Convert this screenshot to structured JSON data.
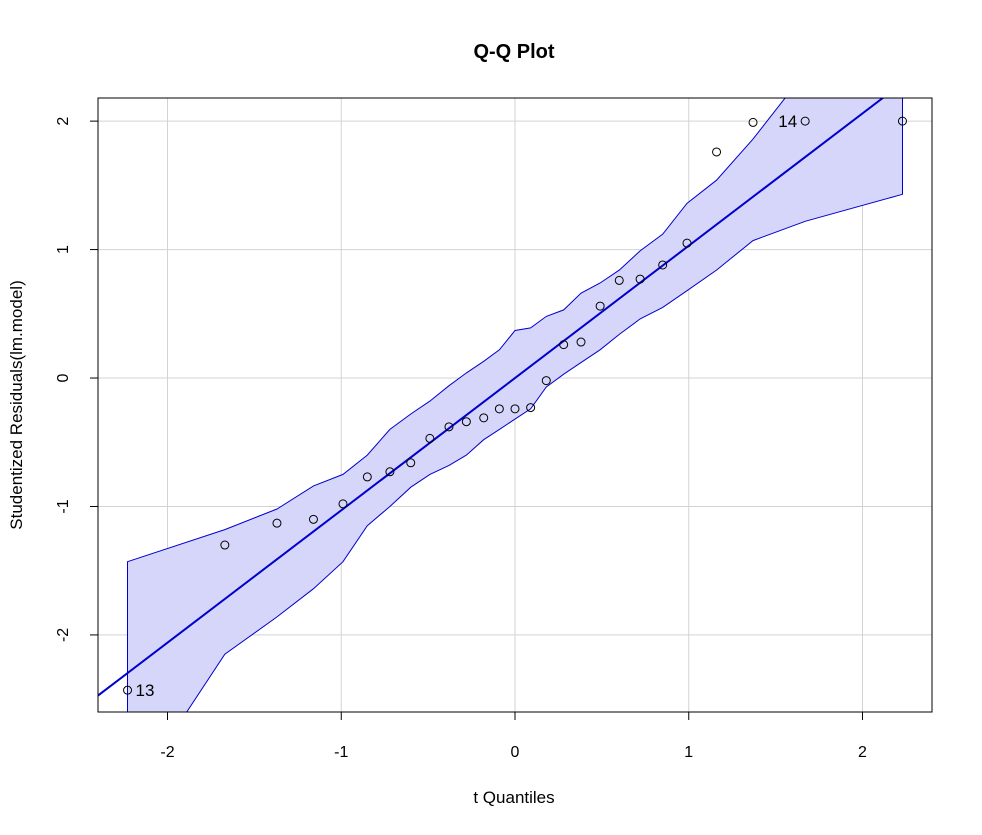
{
  "chart_data": {
    "type": "scatter",
    "title": "Q-Q Plot",
    "xlabel": "t Quantiles",
    "ylabel": "Studentized Residuals(lm.model)",
    "xlim": [
      -2.4,
      2.4
    ],
    "ylim": [
      -2.6,
      2.18
    ],
    "grid": true,
    "x_ticks": [
      -2,
      -1,
      0,
      1,
      2
    ],
    "y_ticks": [
      -2,
      -1,
      0,
      1,
      2
    ],
    "x_tick_labels": [
      "-2",
      "-1",
      "0",
      "1",
      "2"
    ],
    "y_tick_labels": [
      "-2",
      "-1",
      "0",
      "1",
      "2"
    ],
    "points": [
      {
        "x": -2.23,
        "y": -2.43,
        "label": "13"
      },
      {
        "x": -1.67,
        "y": -1.3
      },
      {
        "x": -1.37,
        "y": -1.13
      },
      {
        "x": -1.16,
        "y": -1.1
      },
      {
        "x": -0.99,
        "y": -0.98
      },
      {
        "x": -0.85,
        "y": -0.77
      },
      {
        "x": -0.72,
        "y": -0.73
      },
      {
        "x": -0.6,
        "y": -0.66
      },
      {
        "x": -0.49,
        "y": -0.47
      },
      {
        "x": -0.38,
        "y": -0.38
      },
      {
        "x": -0.28,
        "y": -0.34
      },
      {
        "x": -0.18,
        "y": -0.31
      },
      {
        "x": -0.09,
        "y": -0.24
      },
      {
        "x": 0.0,
        "y": -0.24
      },
      {
        "x": 0.09,
        "y": -0.23
      },
      {
        "x": 0.18,
        "y": -0.02
      },
      {
        "x": 0.28,
        "y": 0.26
      },
      {
        "x": 0.38,
        "y": 0.28
      },
      {
        "x": 0.49,
        "y": 0.56
      },
      {
        "x": 0.6,
        "y": 0.76
      },
      {
        "x": 0.72,
        "y": 0.77
      },
      {
        "x": 0.85,
        "y": 0.88
      },
      {
        "x": 0.99,
        "y": 1.05
      },
      {
        "x": 1.16,
        "y": 1.76
      },
      {
        "x": 1.37,
        "y": 1.99
      },
      {
        "x": 1.67,
        "y": 2.0,
        "label": "14"
      },
      {
        "x": 2.23,
        "y": 2.0
      }
    ],
    "reference_line": {
      "intercept": 0.0,
      "slope": 1.03
    },
    "envelope": {
      "x": [
        -2.23,
        -1.67,
        -1.37,
        -1.16,
        -0.99,
        -0.85,
        -0.72,
        -0.6,
        -0.49,
        -0.38,
        -0.28,
        -0.18,
        -0.09,
        0.0,
        0.09,
        0.18,
        0.28,
        0.38,
        0.49,
        0.6,
        0.72,
        0.85,
        0.99,
        1.16,
        1.37,
        1.67,
        2.23
      ],
      "lower": [
        -3.3,
        -2.15,
        -1.86,
        -1.64,
        -1.43,
        -1.15,
        -1.0,
        -0.85,
        -0.75,
        -0.68,
        -0.6,
        -0.48,
        -0.4,
        -0.32,
        -0.24,
        -0.07,
        0.03,
        0.12,
        0.22,
        0.34,
        0.46,
        0.55,
        0.68,
        0.84,
        1.07,
        1.22,
        1.43
      ],
      "upper": [
        -1.43,
        -1.18,
        -1.02,
        -0.84,
        -0.75,
        -0.6,
        -0.4,
        -0.28,
        -0.18,
        -0.06,
        0.04,
        0.13,
        0.22,
        0.37,
        0.39,
        0.48,
        0.53,
        0.66,
        0.74,
        0.84,
        0.99,
        1.12,
        1.36,
        1.54,
        1.86,
        2.38,
        3.3
      ]
    },
    "colors": {
      "points": "#000000",
      "line": "#0000cd",
      "envelope_fill": "#d6d6fa",
      "envelope_stroke": "#0000cd",
      "grid": "#d3d3d3",
      "frame": "#000000"
    }
  }
}
